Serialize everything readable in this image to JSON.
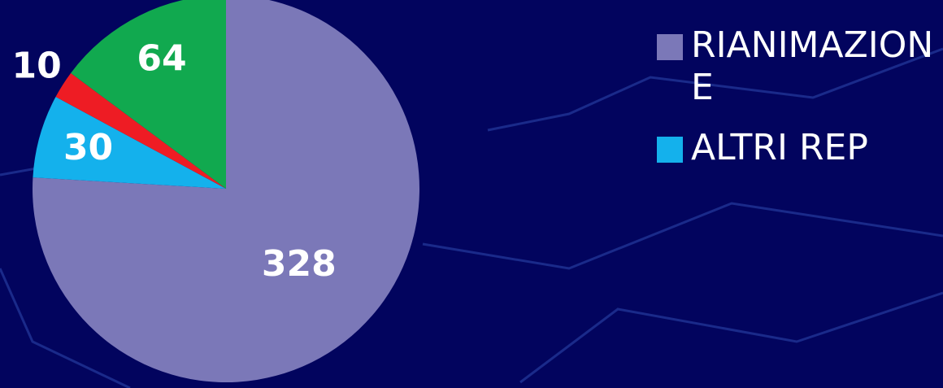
{
  "chart_data": {
    "type": "pie",
    "categories": [
      "RIANIMAZIONE",
      "ALTRI REP",
      null,
      null
    ],
    "values": [
      328,
      30,
      10,
      64
    ],
    "colors": [
      "#7b78b8",
      "#14b1ec",
      "#ee1c24",
      "#11a94f"
    ]
  }
}
